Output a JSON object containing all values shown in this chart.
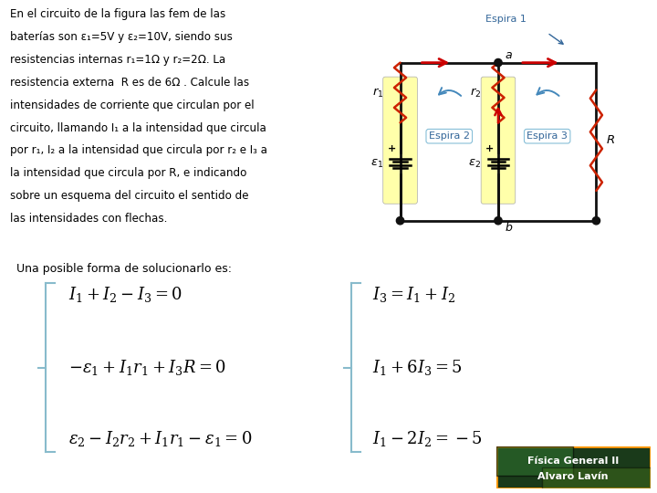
{
  "bg_color": "#ffffff",
  "title_text_lines": [
    "En el circuito de la figura las fem de las",
    "baterías son ε₁=5V y ε₂=10V, siendo sus",
    "resistencias internas r₁=1Ω y r₂=2Ω. La",
    "resistencia externa  R es de 6Ω . Calcule las",
    "intensidades de corriente que circulan por el",
    "circuito, llamando I₁ a la intensidad que circula",
    "por r₁, I₂ a la intensidad que circula por r₂ e I₃ a",
    "la intensidad que circula por R, e indicando",
    "sobre un esquema del circuito el sentido de",
    "las intensidades con flechas."
  ],
  "subtitle": "Una posible forma de solucionarlo es:",
  "eq_left_1": "$I_1 + I_2 - I_3 = 0$",
  "eq_left_2": "$-\\varepsilon_1 + I_1r_1 + I_3R = 0$",
  "eq_left_3": "$\\varepsilon_2 - I_2r_2 + I_1r_1 - \\varepsilon_1 = 0$",
  "eq_right_1": "$I_3 = I_1 + I_2$",
  "eq_right_2": "$I_1 + 6I_3 = 5$",
  "eq_right_3": "$I_1 - 2I_2 = -5$",
  "circuit_box_color": "#7ab8d4",
  "resistor_color": "#cc2200",
  "battery_color": "#ffffaa",
  "arrow_color": "#cc0000",
  "loop_arrow_color": "#4488bb",
  "wire_color": "#111111",
  "espira1_label": "Espira 1",
  "espira2_label": "Espira 2",
  "espira3_label": "Espira 3",
  "label_a": "a",
  "label_b": "b",
  "label_r1": "$r_1$",
  "label_r2": "$r_2$",
  "label_R": "$R$",
  "label_eps1": "$\\varepsilon_1$",
  "label_eps2": "$\\varepsilon_2$",
  "footer_line1": "Física General II",
  "footer_line2": "Alvaro Lavín",
  "footer_bg": "#c05000",
  "footer_border": "#ff9900",
  "footer_text_color": "#ffffff",
  "bracket_color": "#88bbcc"
}
